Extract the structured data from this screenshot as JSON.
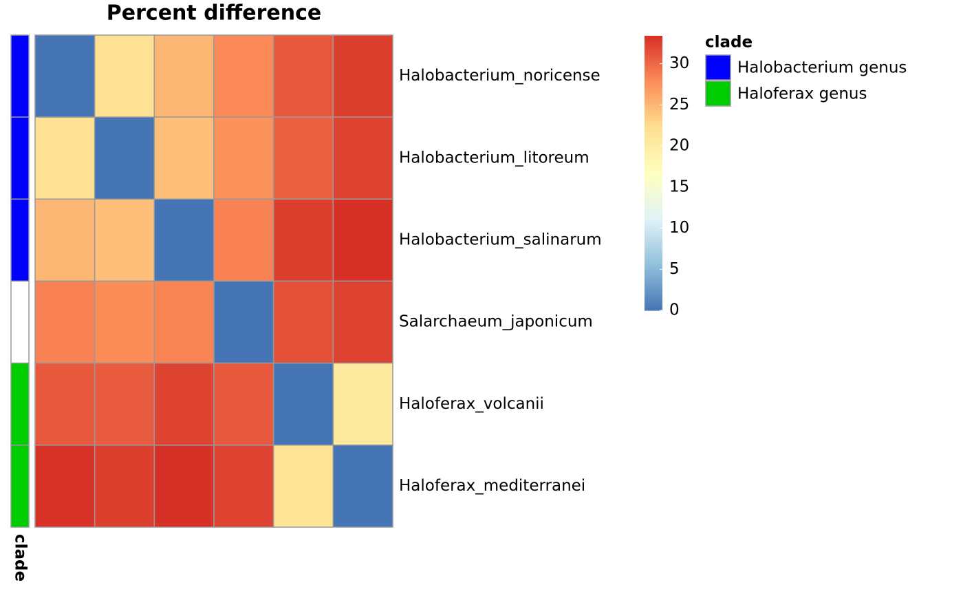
{
  "chart_data": {
    "type": "heatmap",
    "title": "Percent difference",
    "rows": [
      "Halobacterium_noricense",
      "Halobacterium_litoreum",
      "Halobacterium_salinarum",
      "Salarchaeum_japonicum",
      "Haloferax_volcanii",
      "Haloferax_mediterranei"
    ],
    "values": [
      [
        0,
        22,
        25,
        28,
        31,
        32.5
      ],
      [
        22,
        0,
        24.5,
        27.5,
        30.5,
        32.3
      ],
      [
        25,
        24.5,
        0,
        28.5,
        32.5,
        33.4
      ],
      [
        28.5,
        27.8,
        28.3,
        0,
        31.5,
        32.3
      ],
      [
        31,
        30.8,
        32.3,
        31,
        0,
        20.5
      ],
      [
        33.3,
        32.5,
        33.4,
        32.2,
        21.5,
        0
      ]
    ],
    "colorscale": [
      "#4575B4",
      "#91BFDB",
      "#E0F3F8",
      "#FFFFBF",
      "#FEE090",
      "#FC8D59",
      "#D73027"
    ],
    "clim": [
      0,
      33.4
    ],
    "cticks": [
      0,
      5,
      10,
      15,
      20,
      25,
      30
    ],
    "annotation_label": "clade",
    "legend_title": "clade",
    "row_groups": [
      0,
      0,
      0,
      null,
      1,
      1
    ],
    "groups": [
      {
        "name": "Halobacterium genus",
        "color": "#0000FF"
      },
      {
        "name": "Haloferax genus",
        "color": "#00CD00"
      }
    ],
    "na_color": "#FFFFFF",
    "border_color": "#999999"
  }
}
